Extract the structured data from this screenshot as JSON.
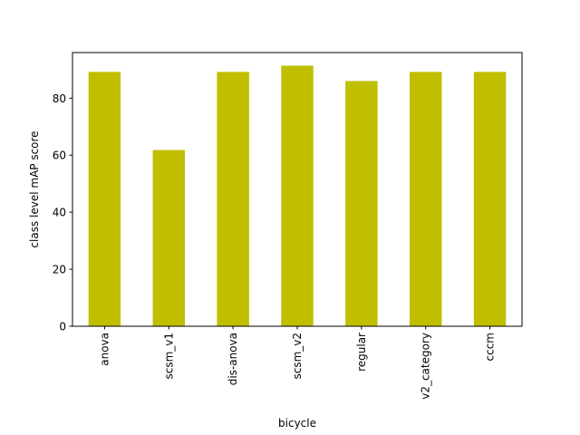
{
  "chart_data": {
    "type": "bar",
    "title": "",
    "xlabel": "bicycle",
    "ylabel": "class level mAP score",
    "categories": [
      "anova",
      "scsm_v1",
      "dis-anova",
      "scsm_v2",
      "regular",
      "v2_category",
      "cccm"
    ],
    "values": [
      89.2,
      61.8,
      89.2,
      91.4,
      86.0,
      89.2,
      89.2
    ],
    "ylim": [
      0,
      95.98
    ],
    "yticks": [
      0,
      20,
      40,
      60,
      80
    ],
    "ytick_labels": [
      "0",
      "20",
      "40",
      "60",
      "80"
    ],
    "bar_color": "#bfbf00",
    "grid": false,
    "legend": "none"
  }
}
